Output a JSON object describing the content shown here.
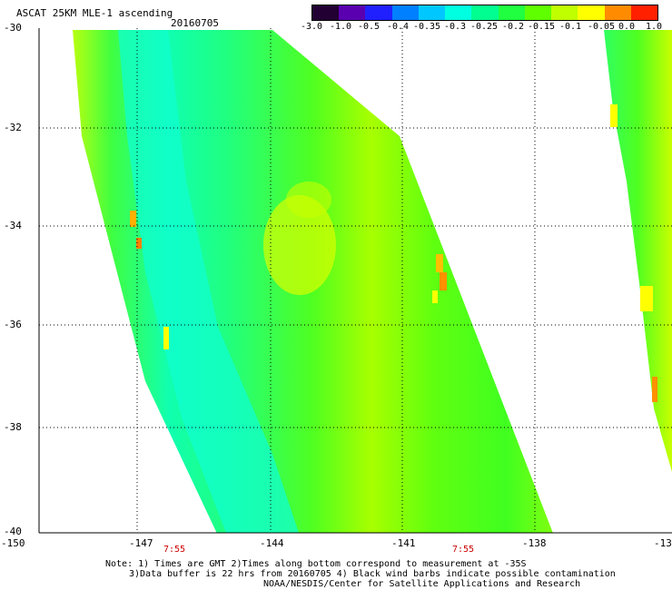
{
  "header": {
    "title": "ASCAT 25KM MLE-1 ascending",
    "date": "20160705"
  },
  "colorbar": {
    "labels": [
      "-3.0",
      "-1.0",
      "-0.5",
      "-0.4",
      "-0.35",
      "-0.3",
      "-0.25",
      "-0.2",
      "-0.15",
      "-0.1",
      "-0.05",
      "0.0",
      "1.0"
    ],
    "colors": [
      "#220033",
      "#5a00b0",
      "#2020ff",
      "#0080ff",
      "#00c8ff",
      "#00ffe0",
      "#00ff90",
      "#20ff40",
      "#60ff00",
      "#c0ff00",
      "#ffff00",
      "#ff8c00",
      "#ff2000"
    ]
  },
  "axes": {
    "lat_labels": [
      "-30",
      "-32",
      "-34",
      "-36",
      "-38",
      "-40"
    ],
    "lon_labels": [
      "-150",
      "-147",
      "-144",
      "-141",
      "-138",
      "-13"
    ]
  },
  "times": [
    "7:55",
    "7:55"
  ],
  "notes": {
    "line1": "Note: 1) Times are GMT 2)Times along bottom correspond to measurement at -35S",
    "line2": "3)Data buffer is 22 hrs from 20160705 4) Black wind barbs indicate possible contamination",
    "line3": "NOAA/NESDIS/Center for Satellite Applications and Research"
  }
}
